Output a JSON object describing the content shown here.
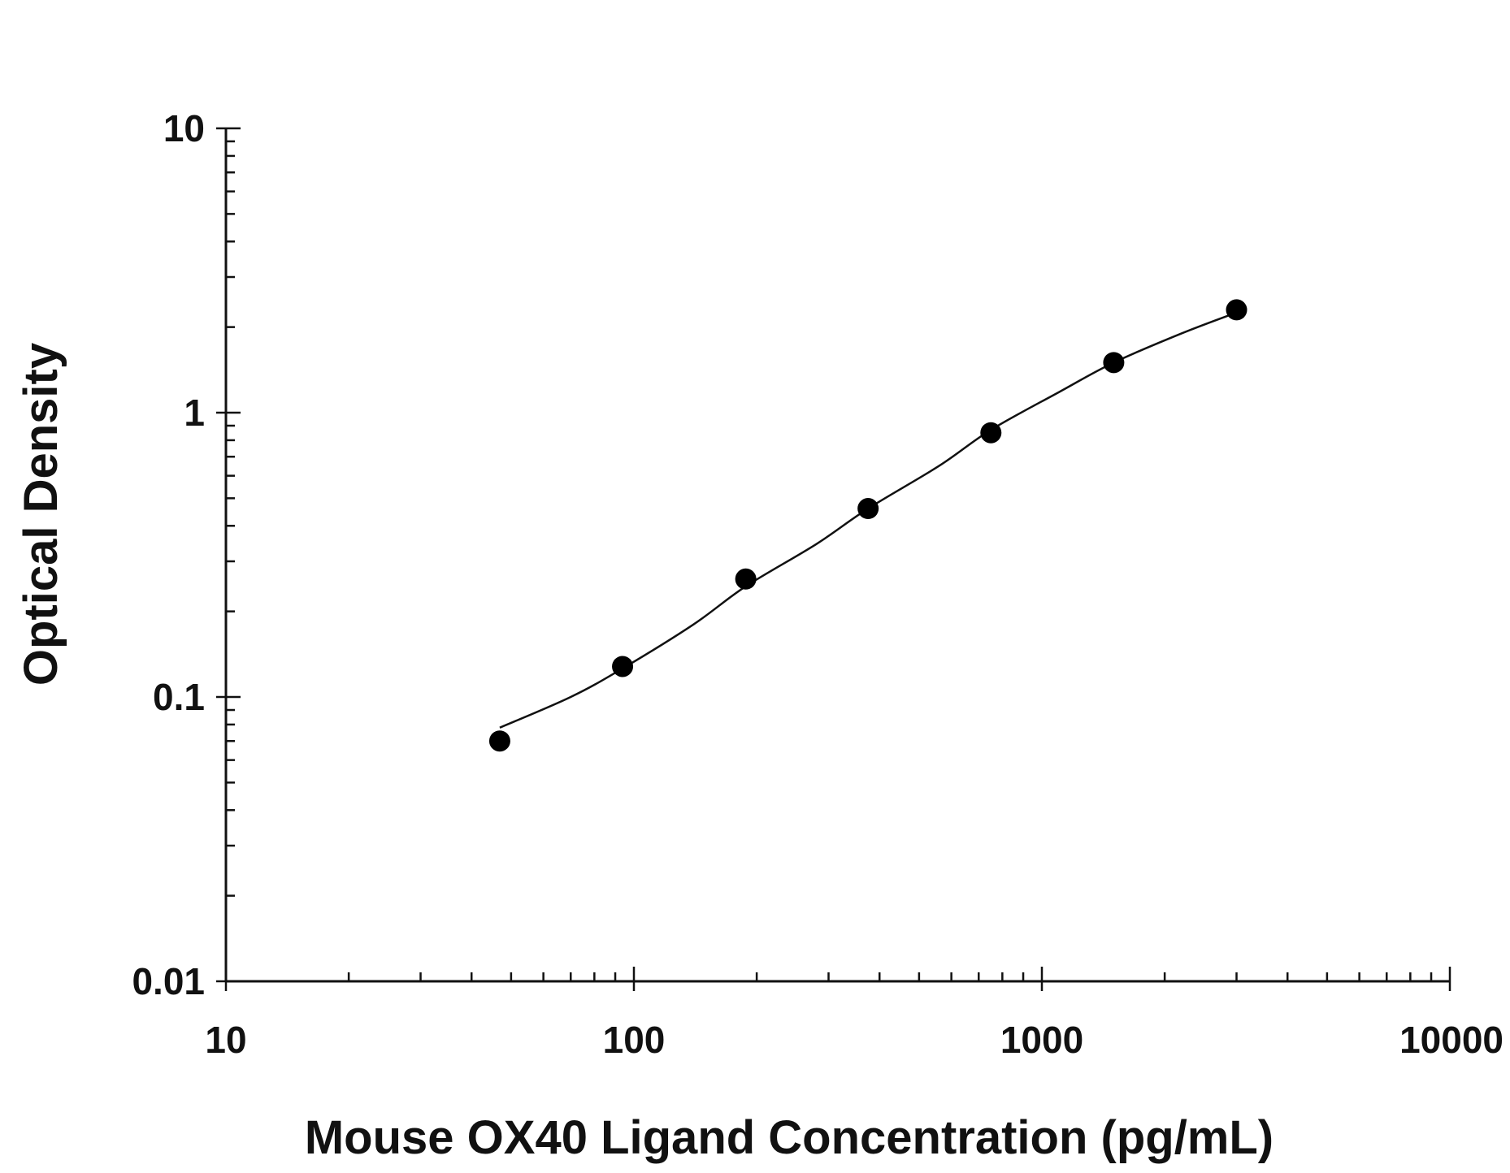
{
  "chart_data": {
    "type": "scatter",
    "xlabel": "Mouse OX40 Ligand Concentration (pg/mL)",
    "ylabel": "Optical Density",
    "x_scale": "log",
    "y_scale": "log",
    "xlim": [
      10,
      10000
    ],
    "ylim": [
      0.01,
      10
    ],
    "x_ticks": [
      "10",
      "100",
      "1000",
      "10000"
    ],
    "y_ticks": [
      "0.01",
      "0.1",
      "1",
      "10"
    ],
    "grid": false,
    "points": [
      {
        "x": 46.9,
        "y": 0.07
      },
      {
        "x": 93.8,
        "y": 0.128
      },
      {
        "x": 188,
        "y": 0.26
      },
      {
        "x": 375,
        "y": 0.46
      },
      {
        "x": 750,
        "y": 0.85
      },
      {
        "x": 1500,
        "y": 1.5
      },
      {
        "x": 3000,
        "y": 2.3
      }
    ],
    "fit_curve": [
      {
        "x": 46.9,
        "y": 0.078
      },
      {
        "x": 70,
        "y": 0.1
      },
      {
        "x": 93.8,
        "y": 0.126
      },
      {
        "x": 140,
        "y": 0.18
      },
      {
        "x": 188,
        "y": 0.245
      },
      {
        "x": 280,
        "y": 0.345
      },
      {
        "x": 375,
        "y": 0.46
      },
      {
        "x": 560,
        "y": 0.65
      },
      {
        "x": 750,
        "y": 0.87
      },
      {
        "x": 1100,
        "y": 1.18
      },
      {
        "x": 1500,
        "y": 1.5
      },
      {
        "x": 2200,
        "y": 1.9
      },
      {
        "x": 3000,
        "y": 2.25
      }
    ]
  }
}
